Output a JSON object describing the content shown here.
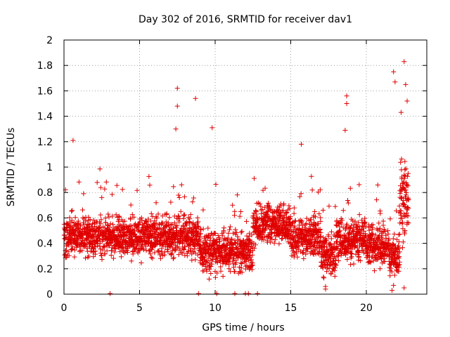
{
  "chart_data": {
    "type": "scatter",
    "title": "Day 302 of 2016, SRMTID for receiver dav1",
    "xlabel": "GPS time / hours",
    "ylabel": "SRMTID / TECUs",
    "xlim": [
      0,
      24
    ],
    "ylim": [
      0,
      2
    ],
    "xticks": [
      0,
      5,
      10,
      15,
      20
    ],
    "yticks": [
      0,
      0.2,
      0.4,
      0.6,
      0.8,
      1,
      1.2,
      1.4,
      1.6,
      1.8,
      2
    ],
    "xtick_labels": [
      "0",
      "5",
      "10",
      "15",
      "20"
    ],
    "ytick_labels": [
      "0",
      "0.2",
      "0.4",
      "0.6",
      "0.8",
      "1",
      "1.2",
      "1.4",
      "1.6",
      "1.8",
      "2"
    ],
    "grid": true,
    "marker": "plus",
    "color": "#e00000",
    "series": [
      {
        "name": "dav1",
        "x_range_hours": [
          0,
          22.8
        ],
        "typical_value_range": [
          0.2,
          0.7
        ],
        "outliers": [
          {
            "x": 0.6,
            "y": 1.21
          },
          {
            "x": 7.5,
            "y": 1.62
          },
          {
            "x": 7.5,
            "y": 1.48
          },
          {
            "x": 7.4,
            "y": 1.3
          },
          {
            "x": 8.7,
            "y": 1.54
          },
          {
            "x": 9.8,
            "y": 1.31
          },
          {
            "x": 15.7,
            "y": 1.18
          },
          {
            "x": 18.7,
            "y": 1.56
          },
          {
            "x": 18.7,
            "y": 1.5
          },
          {
            "x": 18.6,
            "y": 1.29
          },
          {
            "x": 21.8,
            "y": 1.75
          },
          {
            "x": 21.9,
            "y": 1.67
          },
          {
            "x": 22.5,
            "y": 1.83
          },
          {
            "x": 22.6,
            "y": 1.65
          },
          {
            "x": 22.7,
            "y": 1.52
          },
          {
            "x": 22.3,
            "y": 1.43
          }
        ]
      }
    ]
  }
}
